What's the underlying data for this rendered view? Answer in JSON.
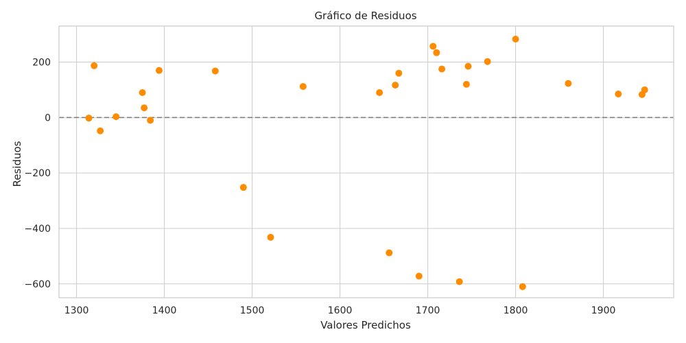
{
  "chart_data": {
    "type": "scatter",
    "title": "Gráfico de Residuos",
    "xlabel": "Valores Predichos",
    "ylabel": "Residuos",
    "xlim": [
      1280,
      1980
    ],
    "ylim": [
      -650,
      330
    ],
    "xticks": [
      1300,
      1400,
      1500,
      1600,
      1700,
      1800,
      1900
    ],
    "yticks": [
      -600,
      -400,
      -200,
      0,
      200
    ],
    "grid": true,
    "reference_line": {
      "y": 0,
      "style": "dashed",
      "color": "#808080"
    },
    "marker_color": "#ff8c00",
    "points": [
      {
        "x": 1314,
        "y": -2
      },
      {
        "x": 1320,
        "y": 187
      },
      {
        "x": 1327,
        "y": -48
      },
      {
        "x": 1345,
        "y": 3
      },
      {
        "x": 1375,
        "y": 90
      },
      {
        "x": 1377,
        "y": 35
      },
      {
        "x": 1384,
        "y": -10
      },
      {
        "x": 1394,
        "y": 170
      },
      {
        "x": 1458,
        "y": 168
      },
      {
        "x": 1490,
        "y": -252
      },
      {
        "x": 1521,
        "y": -432
      },
      {
        "x": 1558,
        "y": 112
      },
      {
        "x": 1645,
        "y": 90
      },
      {
        "x": 1656,
        "y": -488
      },
      {
        "x": 1663,
        "y": 117
      },
      {
        "x": 1667,
        "y": 160
      },
      {
        "x": 1690,
        "y": -572
      },
      {
        "x": 1706,
        "y": 257
      },
      {
        "x": 1710,
        "y": 234
      },
      {
        "x": 1716,
        "y": 175
      },
      {
        "x": 1736,
        "y": -592
      },
      {
        "x": 1744,
        "y": 120
      },
      {
        "x": 1746,
        "y": 185
      },
      {
        "x": 1768,
        "y": 202
      },
      {
        "x": 1800,
        "y": 283
      },
      {
        "x": 1808,
        "y": -610
      },
      {
        "x": 1860,
        "y": 123
      },
      {
        "x": 1917,
        "y": 85
      },
      {
        "x": 1944,
        "y": 83
      },
      {
        "x": 1947,
        "y": 100
      }
    ]
  }
}
